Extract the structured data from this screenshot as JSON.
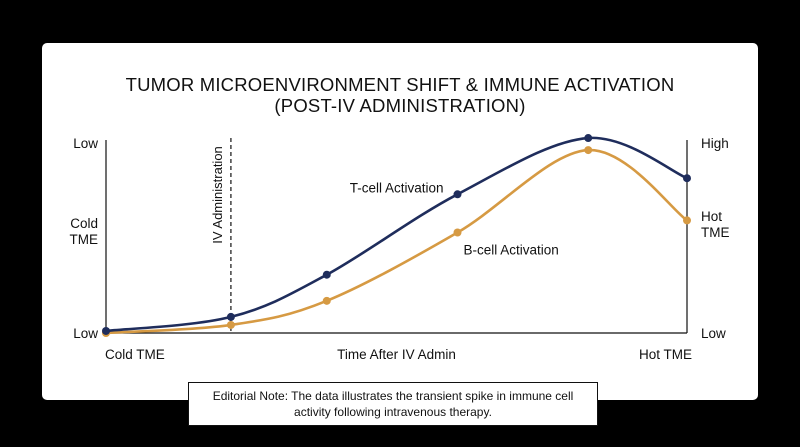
{
  "title_line1": "TUMOR MICROENVIRONMENT SHIFT & IMMUNE ACTIVATION",
  "title_line2": "(POST-IV ADMINISTRATION)",
  "note": "Editorial Note: The data illustrates the transient spike in immune cell activity following intravenous therapy.",
  "colors": {
    "background": "#000000",
    "card": "#ffffff",
    "tcell": "#1f2d5c",
    "bcell": "#d69a43",
    "axis": "#111111"
  },
  "chart_data": {
    "type": "line",
    "x_tick_labels": [
      {
        "x": 0,
        "label": "Cold TME"
      },
      {
        "x": 5,
        "label": "Time After IV Admin"
      },
      {
        "x": 10,
        "label": "Hot TME"
      }
    ],
    "left_y_labels": [
      {
        "y": 1.0,
        "label": "Low"
      },
      {
        "y": 0.5,
        "label": "Cold\nTME"
      },
      {
        "y": 0.0,
        "label": "Low"
      }
    ],
    "right_y_labels": [
      {
        "y": 1.0,
        "label": "High"
      },
      {
        "y": 0.5,
        "label": "Hot\nTME"
      },
      {
        "y": 0.0,
        "label": "Low"
      }
    ],
    "xlim": [
      0,
      10
    ],
    "ylim": [
      0,
      1
    ],
    "grid": false,
    "annotations": [
      {
        "type": "vline",
        "x": 2.15,
        "label": "IV Administration",
        "style": "dashed"
      }
    ],
    "series": [
      {
        "name": "T-cell Activation",
        "color": "#1f2d5c",
        "points": [
          [
            0,
            0.02
          ],
          [
            2.15,
            0.09
          ],
          [
            3.8,
            0.3
          ],
          [
            6.05,
            0.7
          ],
          [
            8.3,
            0.98
          ],
          [
            10,
            0.78
          ]
        ],
        "marker_indices": [
          0,
          1,
          2,
          3,
          4,
          5
        ],
        "label_anchor_index": 3
      },
      {
        "name": "B-cell Activation",
        "color": "#d69a43",
        "points": [
          [
            0,
            0.01
          ],
          [
            2.15,
            0.05
          ],
          [
            3.8,
            0.17
          ],
          [
            6.05,
            0.51
          ],
          [
            8.3,
            0.92
          ],
          [
            10,
            0.57
          ]
        ],
        "marker_indices": [
          0,
          1,
          2,
          3,
          4,
          5
        ],
        "label_anchor_index": 3
      }
    ]
  }
}
